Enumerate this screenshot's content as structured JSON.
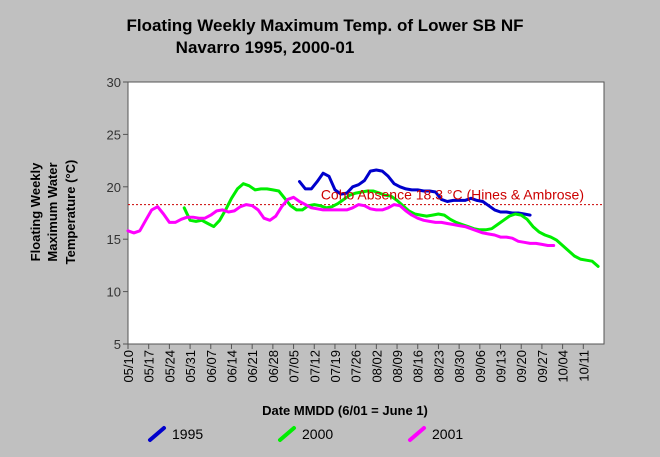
{
  "chart_data": {
    "type": "line",
    "title_line1": "Floating Weekly Maximum Temp. of Lower SB NF",
    "title_line2": "Navarro 1995, 2000-01",
    "xlabel": "Date MMDD (6/01 = June 1)",
    "ylabel_lines": [
      "Floating Weekly",
      "Maximum Water",
      "Temperature (°C)"
    ],
    "ylim": [
      5,
      30
    ],
    "yticks": [
      5,
      10,
      15,
      20,
      25,
      30
    ],
    "xticks": [
      "05/10",
      "05/17",
      "05/24",
      "05/31",
      "06/07",
      "06/14",
      "06/21",
      "06/28",
      "07/05",
      "07/12",
      "07/19",
      "07/26",
      "08/02",
      "08/09",
      "08/16",
      "08/23",
      "08/30",
      "09/06",
      "09/13",
      "09/20",
      "09/27",
      "10/04",
      "10/11"
    ],
    "x_day_of_year": [
      130,
      137,
      144,
      151,
      158,
      165,
      172,
      179,
      186,
      193,
      200,
      207,
      214,
      221,
      228,
      235,
      242,
      249,
      256,
      263,
      270,
      277,
      284
    ],
    "xlim_day_of_year": [
      130,
      291
    ],
    "grid": false,
    "legend_position": "bottom",
    "threshold": {
      "value": 18.3,
      "label": "Coho Absence 18.3 °C (Hines & Ambrose)",
      "color": "#cc0000"
    },
    "series": [
      {
        "name": "1995",
        "color": "#0000cc",
        "x": [
          188,
          190,
          192,
          194,
          196,
          198,
          200,
          202,
          204,
          206,
          208,
          210,
          212,
          214,
          216,
          218,
          220,
          222,
          224,
          226,
          228,
          230,
          232,
          234,
          236,
          238,
          240,
          242,
          244,
          246,
          248,
          250,
          252,
          254,
          256,
          258,
          260,
          262,
          264,
          266
        ],
        "y": [
          20.5,
          19.8,
          19.8,
          20.5,
          21.3,
          21.0,
          19.7,
          19.3,
          19.4,
          20.0,
          20.2,
          20.6,
          21.5,
          21.6,
          21.5,
          21.0,
          20.3,
          20.0,
          19.8,
          19.7,
          19.7,
          19.6,
          19.6,
          19.5,
          18.8,
          18.6,
          18.7,
          18.7,
          18.7,
          18.9,
          18.7,
          18.6,
          18.2,
          17.8,
          17.6,
          17.6,
          17.5,
          17.5,
          17.4,
          17.3
        ]
      },
      {
        "name": "2000",
        "color": "#00ee00",
        "x": [
          149,
          151,
          153,
          155,
          157,
          159,
          161,
          163,
          165,
          167,
          169,
          171,
          173,
          175,
          177,
          179,
          181,
          183,
          185,
          187,
          189,
          191,
          193,
          195,
          197,
          199,
          201,
          203,
          205,
          207,
          209,
          211,
          213,
          215,
          217,
          219,
          221,
          223,
          225,
          227,
          229,
          231,
          233,
          235,
          237,
          239,
          241,
          243,
          245,
          247,
          249,
          251,
          253,
          255,
          257,
          259,
          261,
          263,
          265,
          267,
          269,
          271,
          273,
          275,
          277,
          279,
          281,
          283,
          285,
          287,
          289
        ],
        "y": [
          18.0,
          16.8,
          16.7,
          16.8,
          16.5,
          16.2,
          16.8,
          17.8,
          18.9,
          19.8,
          20.3,
          20.1,
          19.7,
          19.8,
          19.8,
          19.7,
          19.6,
          18.9,
          18.2,
          17.8,
          17.8,
          18.2,
          18.3,
          18.2,
          18.0,
          18.1,
          18.4,
          18.8,
          19.2,
          19.4,
          19.5,
          19.6,
          19.6,
          19.4,
          19.2,
          19.1,
          18.7,
          18.2,
          17.7,
          17.4,
          17.3,
          17.2,
          17.3,
          17.4,
          17.3,
          16.9,
          16.6,
          16.4,
          16.2,
          16.0,
          15.9,
          15.9,
          16.0,
          16.4,
          16.8,
          17.2,
          17.4,
          17.3,
          16.9,
          16.2,
          15.7,
          15.4,
          15.2,
          14.9,
          14.4,
          13.9,
          13.4,
          13.1,
          13.0,
          12.9,
          12.4
        ]
      },
      {
        "name": "2001",
        "color": "#ff00ff",
        "x": [
          130,
          132,
          134,
          136,
          138,
          140,
          142,
          144,
          146,
          148,
          150,
          152,
          154,
          156,
          158,
          160,
          162,
          164,
          166,
          168,
          170,
          172,
          174,
          176,
          178,
          180,
          182,
          184,
          186,
          188,
          190,
          192,
          194,
          196,
          198,
          200,
          202,
          204,
          206,
          208,
          210,
          212,
          214,
          216,
          218,
          220,
          222,
          224,
          226,
          228,
          230,
          232,
          234,
          236,
          238,
          240,
          242,
          244,
          246,
          248,
          250,
          252,
          254,
          256,
          258,
          260,
          262,
          264,
          266,
          268,
          270,
          272,
          274
        ],
        "y": [
          15.8,
          15.6,
          15.8,
          16.8,
          17.8,
          18.1,
          17.4,
          16.6,
          16.6,
          16.9,
          17.1,
          17.1,
          17.0,
          17.0,
          17.3,
          17.7,
          17.8,
          17.6,
          17.7,
          18.1,
          18.3,
          18.2,
          17.8,
          17.0,
          16.8,
          17.2,
          18.1,
          18.8,
          19.0,
          18.6,
          18.3,
          18.0,
          17.9,
          17.8,
          17.8,
          17.8,
          17.8,
          17.8,
          18.0,
          18.3,
          18.2,
          17.9,
          17.8,
          17.8,
          18.0,
          18.3,
          18.2,
          17.7,
          17.3,
          17.0,
          16.8,
          16.7,
          16.6,
          16.6,
          16.5,
          16.4,
          16.3,
          16.2,
          16.0,
          15.8,
          15.6,
          15.5,
          15.4,
          15.2,
          15.2,
          15.1,
          14.8,
          14.7,
          14.6,
          14.6,
          14.5,
          14.4,
          14.4
        ]
      }
    ]
  }
}
